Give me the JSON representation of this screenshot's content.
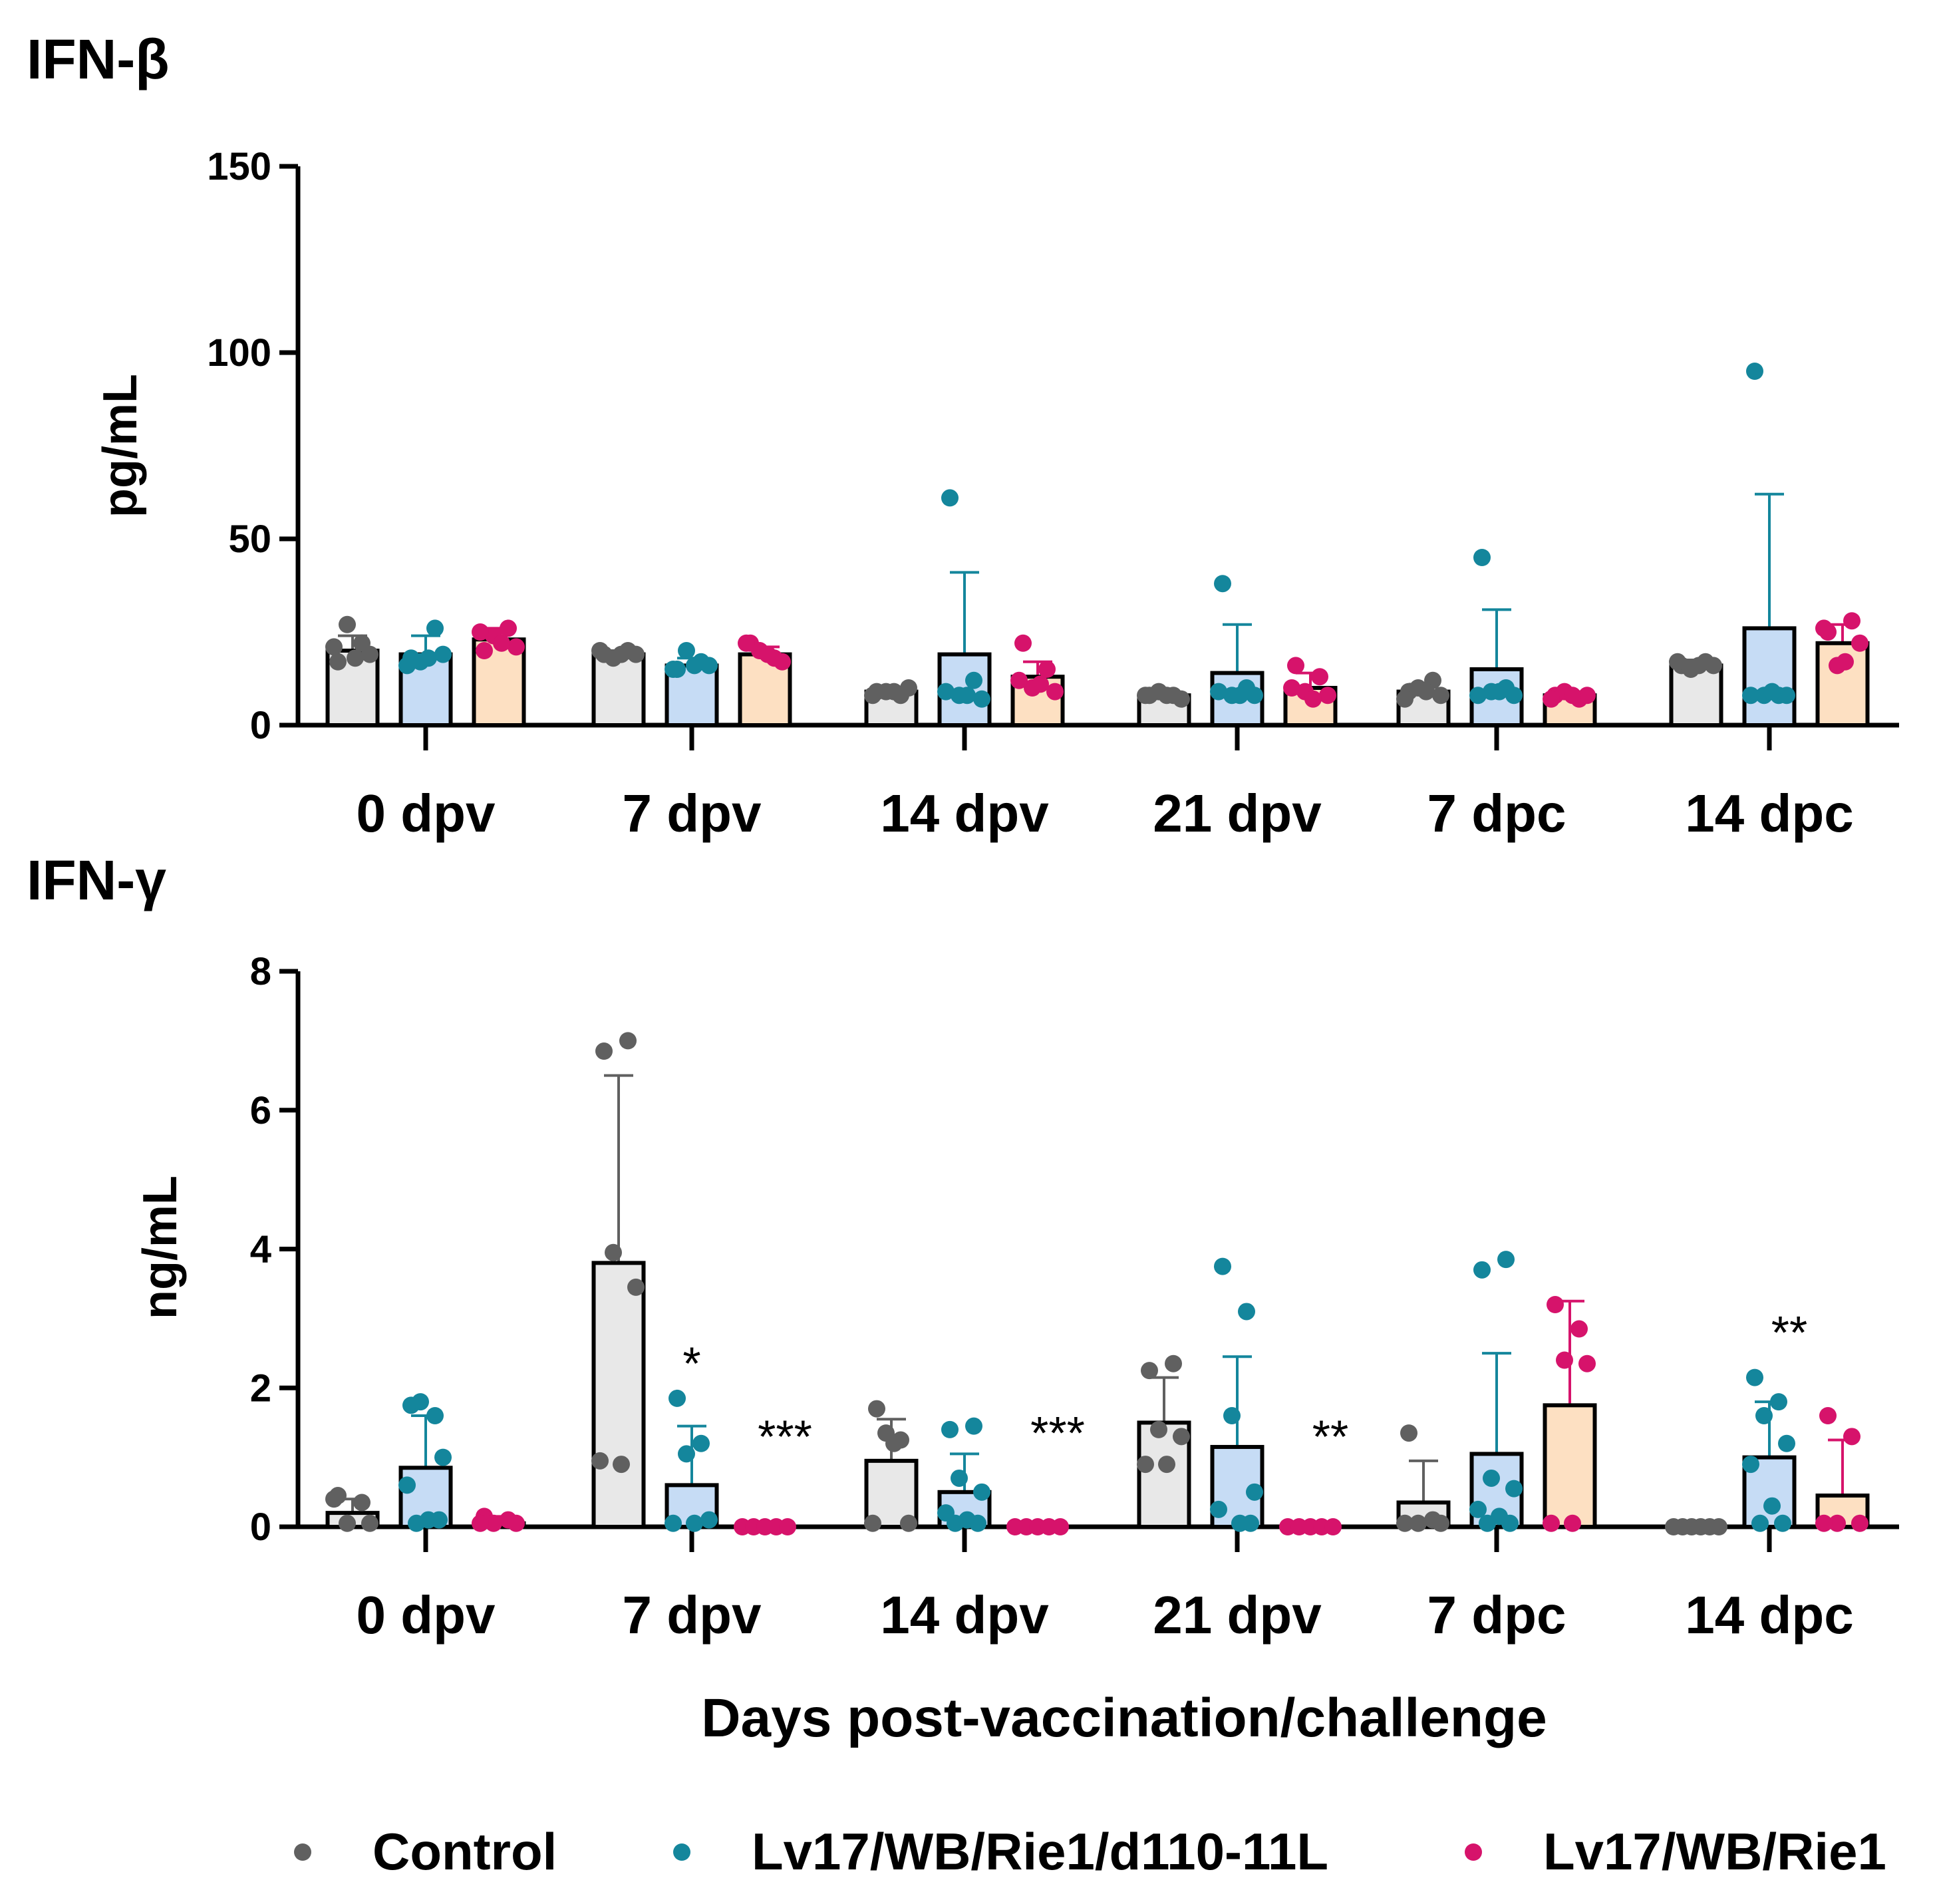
{
  "chart_data": [
    {
      "type": "bar",
      "title": "IFN-β",
      "ylabel": "pg/mL",
      "xlabel": "",
      "ylim": [
        0,
        150
      ],
      "yticks": [
        0,
        50,
        100,
        150
      ],
      "categories": [
        "0 dpv",
        "7 dpv",
        "14 dpv",
        "21 dpv",
        "7 dpc",
        "14 dpc"
      ],
      "series": [
        {
          "name": "Control",
          "values": [
            20,
            19,
            9,
            8,
            9,
            16
          ],
          "errors": [
            4,
            1,
            1,
            1,
            2,
            1.5
          ],
          "points": [
            [
              17,
              22,
              27,
              19,
              21,
              18
            ],
            [
              19,
              20,
              18,
              19,
              20,
              19
            ],
            [
              9,
              8,
              9,
              10,
              8,
              9
            ],
            [
              8,
              8,
              9,
              7,
              8,
              8
            ],
            [
              9,
              12,
              10,
              8,
              7,
              9
            ],
            [
              16,
              17,
              15,
              16,
              17,
              16
            ]
          ]
        },
        {
          "name": "Lv17/WB/Rie1/d110-11L",
          "values": [
            19,
            16,
            19,
            14,
            15,
            26
          ],
          "errors": [
            5,
            2,
            22,
            13,
            16,
            36
          ],
          "points": [
            [
              18,
              26,
              17,
              19,
              16,
              18
            ],
            [
              15,
              17,
              20,
              16,
              15,
              16
            ],
            [
              61,
              12,
              8,
              7,
              9,
              8
            ],
            [
              38,
              10,
              8,
              8,
              9,
              8
            ],
            [
              45,
              10,
              9,
              8,
              8,
              9
            ],
            [
              95,
              8,
              8,
              8,
              8,
              9
            ]
          ]
        },
        {
          "name": "Lv17/WB/Rie1",
          "values": [
            23,
            19,
            13,
            10,
            8,
            22
          ],
          "errors": [
            3,
            2,
            4,
            4,
            1,
            5
          ],
          "points": [
            [
              20,
              26,
              24,
              21,
              25,
              22
            ],
            [
              22,
              18,
              20,
              17,
              22,
              19
            ],
            [
              22,
              15,
              10,
              9,
              12,
              11
            ],
            [
              16,
              13,
              9,
              8,
              10,
              7
            ],
            [
              8,
              7,
              9,
              8,
              7,
              8
            ],
            [
              25,
              28,
              16,
              22,
              26,
              17
            ]
          ]
        }
      ],
      "annotations": []
    },
    {
      "type": "bar",
      "title": "IFN-γ",
      "ylabel": "ng/mL",
      "xlabel": "Days post-vaccination/challenge",
      "ylim": [
        0,
        8
      ],
      "yticks": [
        0,
        2,
        4,
        6,
        8
      ],
      "categories": [
        "0 dpv",
        "7 dpv",
        "14 dpv",
        "21 dpv",
        "7 dpc",
        "14 dpc"
      ],
      "series": [
        {
          "name": "Control",
          "values": [
            0.2,
            3.8,
            0.95,
            1.5,
            0.35,
            0
          ],
          "errors": [
            0.2,
            2.7,
            0.6,
            0.65,
            0.6,
            0
          ],
          "points": [
            [
              0.45,
              0.35,
              0.05,
              0.05,
              0.4
            ],
            [
              6.85,
              7.0,
              3.95,
              3.45,
              0.95,
              0.9
            ],
            [
              1.7,
              1.25,
              1.35,
              0.05,
              0.05,
              1.2
            ],
            [
              2.25,
              2.35,
              1.4,
              1.3,
              0.9,
              0.9
            ],
            [
              1.35,
              0.1,
              0.05,
              0.05,
              0.05
            ],
            [
              0,
              0,
              0,
              0,
              0,
              0
            ]
          ]
        },
        {
          "name": "Lv17/WB/Rie1/d110-11L",
          "values": [
            0.85,
            0.6,
            0.5,
            1.15,
            1.05,
            1.0
          ],
          "errors": [
            0.75,
            0.85,
            0.55,
            1.3,
            1.45,
            0.8
          ],
          "points": [
            [
              1.75,
              1.6,
              1.8,
              1.0,
              0.6,
              0.1,
              0.1,
              0.05
            ],
            [
              1.85,
              1.2,
              1.05,
              0.1,
              0.05,
              0.05
            ],
            [
              1.4,
              1.45,
              0.7,
              0.5,
              0.2,
              0.1,
              0.05,
              0.05
            ],
            [
              3.75,
              3.1,
              1.6,
              0.5,
              0.25,
              0.05,
              0.05
            ],
            [
              3.7,
              3.85,
              0.7,
              0.55,
              0.25,
              0.15,
              0.05,
              0.05
            ],
            [
              2.15,
              1.8,
              1.6,
              1.2,
              0.9,
              0.3,
              0.05,
              0.05
            ]
          ]
        },
        {
          "name": "Lv17/WB/Rie1",
          "values": [
            0.05,
            0,
            0,
            0,
            1.75,
            0.45
          ],
          "errors": [
            0.1,
            0,
            0,
            0,
            1.5,
            0.8
          ],
          "points": [
            [
              0.15,
              0.1,
              0.05,
              0.05,
              0.05
            ],
            [
              0,
              0,
              0,
              0,
              0
            ],
            [
              0,
              0,
              0,
              0,
              0
            ],
            [
              0,
              0,
              0,
              0,
              0
            ],
            [
              3.2,
              2.85,
              2.4,
              2.35,
              0.05,
              0.05
            ],
            [
              1.6,
              1.3,
              0.05,
              0.05,
              0.05
            ]
          ]
        }
      ],
      "annotations": [
        {
          "text": "*",
          "group": 1,
          "series": 1,
          "y": 2.35
        },
        {
          "text": "***",
          "group": 1,
          "series": 2,
          "y": 1.3
        },
        {
          "text": "***",
          "group": 2,
          "series": 2,
          "y": 1.35
        },
        {
          "text": "**",
          "group": 3,
          "series": 2,
          "y": 1.3
        },
        {
          "text": "**",
          "group": 5,
          "series": 1,
          "y": 2.8
        }
      ]
    }
  ],
  "legend": [
    {
      "label": "Control",
      "color": "#606060"
    },
    {
      "label": "Lv17/WB/Rie1/d110-11L",
      "color": "#14869c"
    },
    {
      "label": "Lv17/WB/Rie1",
      "color": "#d6136b"
    }
  ],
  "bar_colors": [
    "#e8e8e8",
    "#c6dcf5",
    "#fde0c2"
  ],
  "dot_colors": [
    "#606060",
    "#14869c",
    "#d6136b"
  ],
  "axis_color": "#000000"
}
